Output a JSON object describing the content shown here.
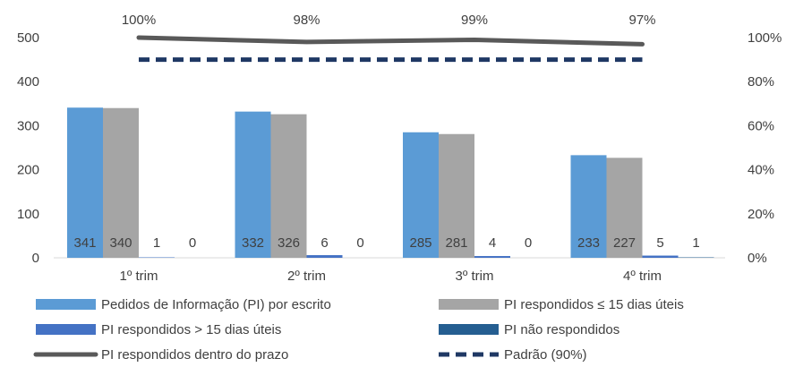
{
  "chart_data": {
    "type": "bar",
    "categories": [
      "1º trim",
      "2º trim",
      "3º trim",
      "4º trim"
    ],
    "series": [
      {
        "name": "Pedidos de Informação (PI) por escrito",
        "kind": "bar",
        "axis": "left",
        "color": "#5B9BD5",
        "values": [
          341,
          332,
          285,
          233
        ],
        "labels": [
          "341",
          "332",
          "285",
          "233"
        ]
      },
      {
        "name": "PI respondidos ≤ 15 dias úteis",
        "kind": "bar",
        "axis": "left",
        "color": "#A5A5A5",
        "values": [
          340,
          326,
          281,
          227
        ],
        "labels": [
          "340",
          "326",
          "281",
          "227"
        ]
      },
      {
        "name": "PI respondidos > 15 dias úteis",
        "kind": "bar",
        "axis": "left",
        "color": "#4472C4",
        "values": [
          1,
          6,
          4,
          5
        ],
        "labels": [
          "1",
          "6",
          "4",
          "5"
        ]
      },
      {
        "name": "PI não respondidos",
        "kind": "bar",
        "axis": "left",
        "color": "#255E91",
        "values": [
          0,
          0,
          0,
          1
        ],
        "labels": [
          "0",
          "0",
          "0",
          "1"
        ]
      },
      {
        "name": "PI respondidos dentro do prazo",
        "kind": "line",
        "axis": "right",
        "color": "#595959",
        "values": [
          1.0,
          0.98,
          0.99,
          0.97
        ],
        "labels": [
          "100%",
          "98%",
          "99%",
          "97%"
        ]
      },
      {
        "name": "Padrão (90%)",
        "kind": "dashed-line",
        "axis": "right",
        "color": "#1F3864",
        "values": [
          0.9,
          0.9,
          0.9,
          0.9
        ]
      }
    ],
    "y_left": {
      "min": 0,
      "max": 500,
      "ticks": [
        "0",
        "100",
        "200",
        "300",
        "400",
        "500"
      ]
    },
    "y_right": {
      "min": 0,
      "max": 1,
      "ticks": [
        "0%",
        "20%",
        "40%",
        "60%",
        "80%",
        "100%"
      ]
    },
    "grid": false,
    "legend_position": "bottom"
  }
}
